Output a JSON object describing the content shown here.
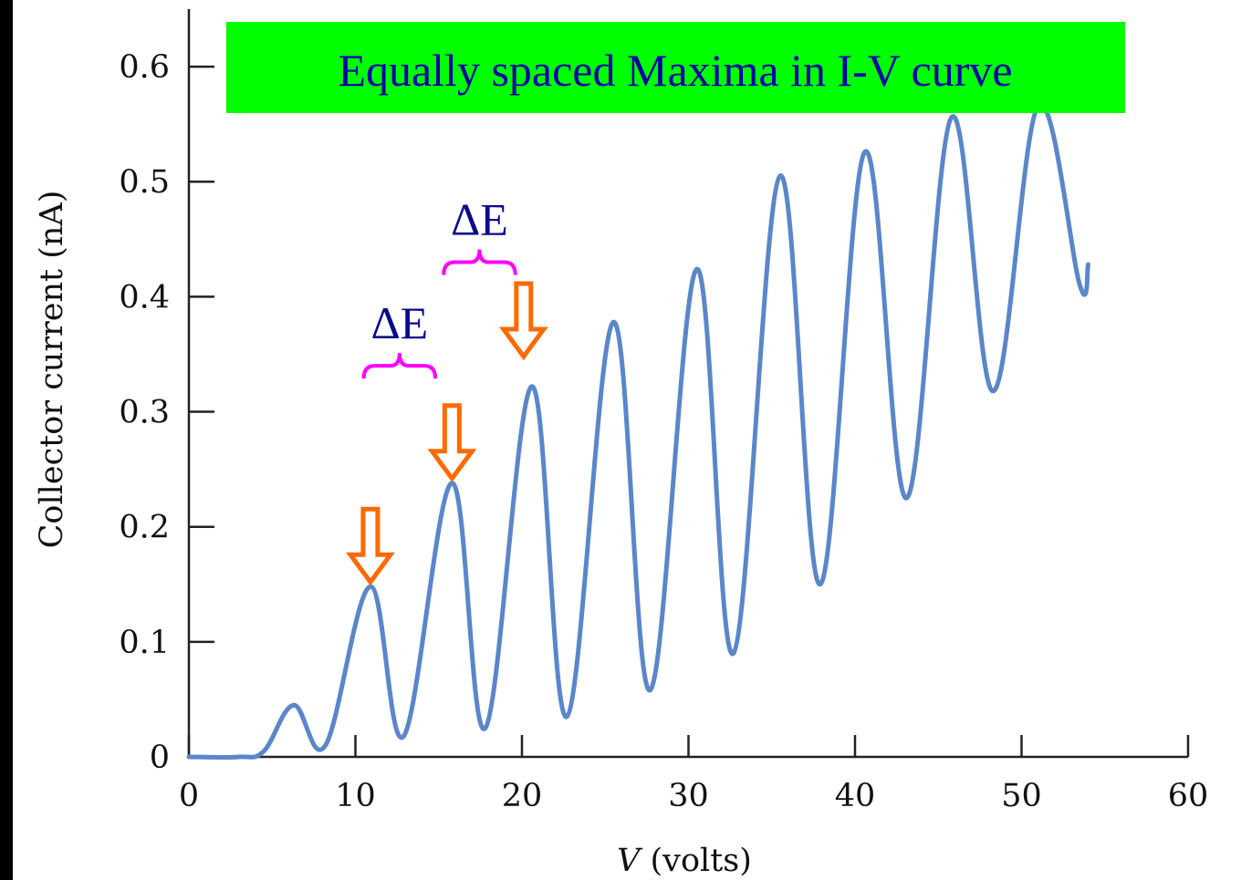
{
  "colors": {
    "background": "#000000",
    "plot_background": "#ffffff",
    "curve": "#5b86c9",
    "title_box": "#00ff00",
    "title_text": "#0000a8",
    "brace": "#ff00ff",
    "delta_text": "#0a0a8c",
    "arrow": "#ff6a00"
  },
  "chart_data": {
    "type": "line",
    "title": "Equally spaced Maxima in I-V curve",
    "xlabel_italic": "V",
    "xlabel_rest": " (volts)",
    "ylabel": "Collector current (nA)",
    "xlim": [
      0,
      60
    ],
    "ylim": [
      0,
      0.65
    ],
    "x_ticks": [
      0,
      10,
      20,
      30,
      40,
      50,
      60
    ],
    "x_tick_labels": [
      "0",
      "10",
      "20",
      "30",
      "40",
      "50",
      "60"
    ],
    "y_ticks": [
      0,
      0.1,
      0.2,
      0.3,
      0.4,
      0.5,
      0.6
    ],
    "y_tick_labels": [
      "0",
      "0.1",
      "0.2",
      "0.3",
      "0.4",
      "0.5",
      "0.6"
    ],
    "grid": false,
    "series": [
      {
        "points": [
          [
            0,
            0.0
          ],
          [
            3.0,
            0.0
          ],
          [
            4.5,
            0.005
          ],
          [
            6.3,
            0.045
          ],
          [
            8.2,
            0.01
          ],
          [
            10.9,
            0.148
          ],
          [
            12.9,
            0.018
          ],
          [
            15.8,
            0.238
          ],
          [
            17.8,
            0.025
          ],
          [
            20.6,
            0.322
          ],
          [
            22.7,
            0.035
          ],
          [
            25.5,
            0.378
          ],
          [
            27.7,
            0.058
          ],
          [
            30.5,
            0.424
          ],
          [
            32.7,
            0.09
          ],
          [
            35.5,
            0.505
          ],
          [
            37.9,
            0.15
          ],
          [
            40.6,
            0.526
          ],
          [
            43.1,
            0.225
          ],
          [
            45.8,
            0.556
          ],
          [
            48.3,
            0.318
          ],
          [
            51.0,
            0.566
          ],
          [
            53.5,
            0.41
          ],
          [
            54.0,
            0.428
          ]
        ]
      }
    ],
    "annotations": {
      "delta_labels": [
        {
          "text": "ΔE",
          "x_from": 10.5,
          "x_to": 14.8,
          "y": 0.34
        },
        {
          "text": "ΔE",
          "x_from": 15.3,
          "x_to": 19.6,
          "y": 0.43
        }
      ],
      "arrow_peaks": [
        {
          "x": 10.9,
          "y_tip": 0.152
        },
        {
          "x": 15.8,
          "y_tip": 0.242
        },
        {
          "x": 20.1,
          "y_tip": 0.348
        }
      ]
    }
  }
}
